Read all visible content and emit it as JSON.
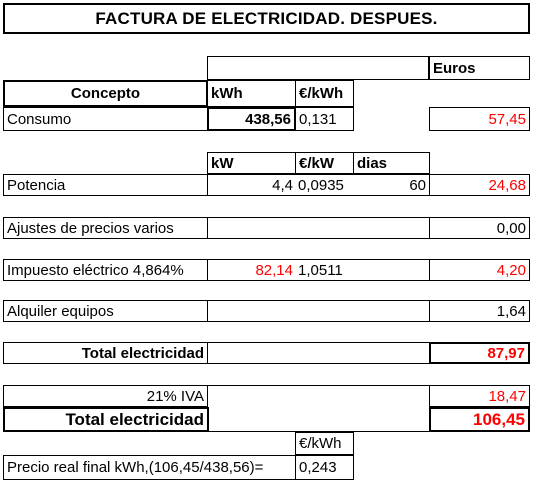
{
  "title": "FACTURA DE ELECTRICIDAD. DESPUES.",
  "headers": {
    "euros": "Euros",
    "concepto": "Concepto",
    "kwh": "kWh",
    "eur_kwh": "€/kWh",
    "kw": "kW",
    "eur_kw": "€/kW",
    "dias": "dias"
  },
  "consumo": {
    "label": "Consumo",
    "kwh": "438,56",
    "price": "0,131",
    "euros": "57,45"
  },
  "potencia": {
    "label": "Potencia",
    "kw": "4,4",
    "price": "0,0935",
    "dias": "60",
    "euros": "24,68"
  },
  "ajustes": {
    "label": "Ajustes de precios varios",
    "euros": "0,00"
  },
  "impuesto": {
    "label": "Impuesto eléctrico 4,864%",
    "base": "82,14",
    "factor": "1,0511",
    "euros": "4,20"
  },
  "alquiler": {
    "label": "Alquiler equipos",
    "euros": "1,64"
  },
  "total1": {
    "label": "Total electricidad",
    "euros": "87,97"
  },
  "iva": {
    "label": "21% IVA",
    "euros": "18,47"
  },
  "total2": {
    "label": "Total electricidad",
    "euros": "106,45"
  },
  "precio_real": {
    "unit": "€/kWh",
    "label": "Precio real final kWh,(106,45/438,56)=",
    "value": "0,243"
  },
  "colors": {
    "text": "#000000",
    "highlight": "#ff0000",
    "border": "#000000"
  }
}
